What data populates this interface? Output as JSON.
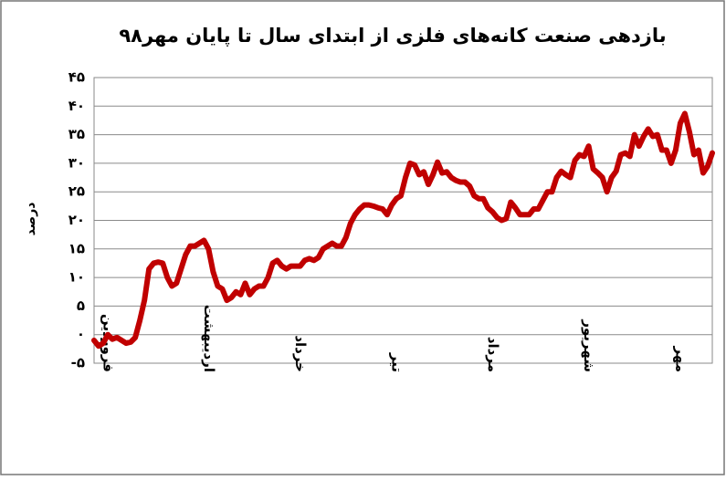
{
  "chart_data": {
    "type": "line",
    "title": "بازدهی صنعت کانه‌های فلزی از ابتدای سال تا پایان مهر۹۸",
    "y_label": "درصد",
    "color": "#c00000",
    "grid": true,
    "ylim": [
      -5,
      45
    ],
    "yticks": [
      {
        "value": -5,
        "label": "-۵"
      },
      {
        "value": 0,
        "label": "۰"
      },
      {
        "value": 5,
        "label": "۵"
      },
      {
        "value": 10,
        "label": "۱۰"
      },
      {
        "value": 15,
        "label": "۱۵"
      },
      {
        "value": 20,
        "label": "۲۰"
      },
      {
        "value": 25,
        "label": "۲۵"
      },
      {
        "value": 30,
        "label": "۳۰"
      },
      {
        "value": 35,
        "label": "۳۵"
      },
      {
        "value": 40,
        "label": "۴۰"
      },
      {
        "value": 45,
        "label": "۴۵"
      }
    ],
    "categories": [
      null,
      null,
      null,
      "فروردین",
      null,
      null,
      null,
      null,
      null,
      null,
      null,
      null,
      null,
      null,
      null,
      null,
      null,
      null,
      null,
      null,
      null,
      null,
      null,
      null,
      null,
      "اردیبهشت",
      null,
      null,
      null,
      null,
      null,
      null,
      null,
      null,
      null,
      null,
      null,
      null,
      null,
      null,
      null,
      null,
      null,
      null,
      null,
      "خرداد",
      null,
      null,
      null,
      null,
      null,
      null,
      null,
      null,
      null,
      null,
      null,
      null,
      null,
      null,
      null,
      null,
      null,
      null,
      null,
      null,
      "تیر",
      null,
      null,
      null,
      null,
      null,
      null,
      null,
      null,
      null,
      null,
      null,
      null,
      null,
      null,
      null,
      null,
      null,
      null,
      null,
      null,
      "مرداد",
      null,
      null,
      null,
      null,
      null,
      null,
      null,
      null,
      null,
      null,
      null,
      null,
      null,
      null,
      null,
      null,
      null,
      null,
      null,
      null,
      "شهریور",
      null,
      null,
      null,
      null,
      null,
      null,
      null,
      null,
      null,
      null,
      null,
      null,
      null,
      null,
      null,
      null,
      null,
      null,
      null,
      "مهر",
      null,
      null,
      null,
      null,
      null,
      null,
      null
    ],
    "values": [
      -1,
      -2,
      -1.5,
      0,
      -0.8,
      -0.5,
      -1,
      -1.5,
      -1.3,
      -0.5,
      2.5,
      6,
      11.5,
      12.5,
      12.7,
      12.5,
      10,
      8.5,
      9,
      11.5,
      14,
      15.5,
      15.5,
      16,
      16.5,
      15,
      11,
      8.5,
      8,
      6,
      6.5,
      7.5,
      7,
      9,
      7,
      8,
      8.5,
      8.5,
      10,
      12.5,
      13,
      12,
      11.5,
      12,
      12,
      12,
      13,
      13.3,
      13,
      13.5,
      15,
      15.5,
      16,
      15.5,
      15.5,
      17,
      19.5,
      21,
      22,
      22.7,
      22.7,
      22.5,
      22.2,
      22,
      21,
      22.7,
      23.8,
      24.3,
      27.5,
      30,
      29.7,
      28,
      28.5,
      26.3,
      28,
      30.2,
      28.3,
      28.5,
      27.5,
      27,
      26.7,
      26.7,
      26,
      24.3,
      23.8,
      23.8,
      22.2,
      21.5,
      20.5,
      20,
      20.3,
      23.2,
      22.2,
      21,
      21,
      21,
      22,
      22,
      23.5,
      25,
      25,
      27.5,
      28.6,
      28,
      27.5,
      30.5,
      31.5,
      31.2,
      33,
      29,
      28.3,
      27.5,
      25,
      27.5,
      28.6,
      31.5,
      31.8,
      31.2,
      35,
      33,
      34.7,
      36,
      34.7,
      35,
      32.3,
      32.3,
      30,
      32.3,
      37,
      38.7,
      35.5,
      31.5,
      32.3,
      28.3,
      29.5,
      31.8
    ]
  }
}
